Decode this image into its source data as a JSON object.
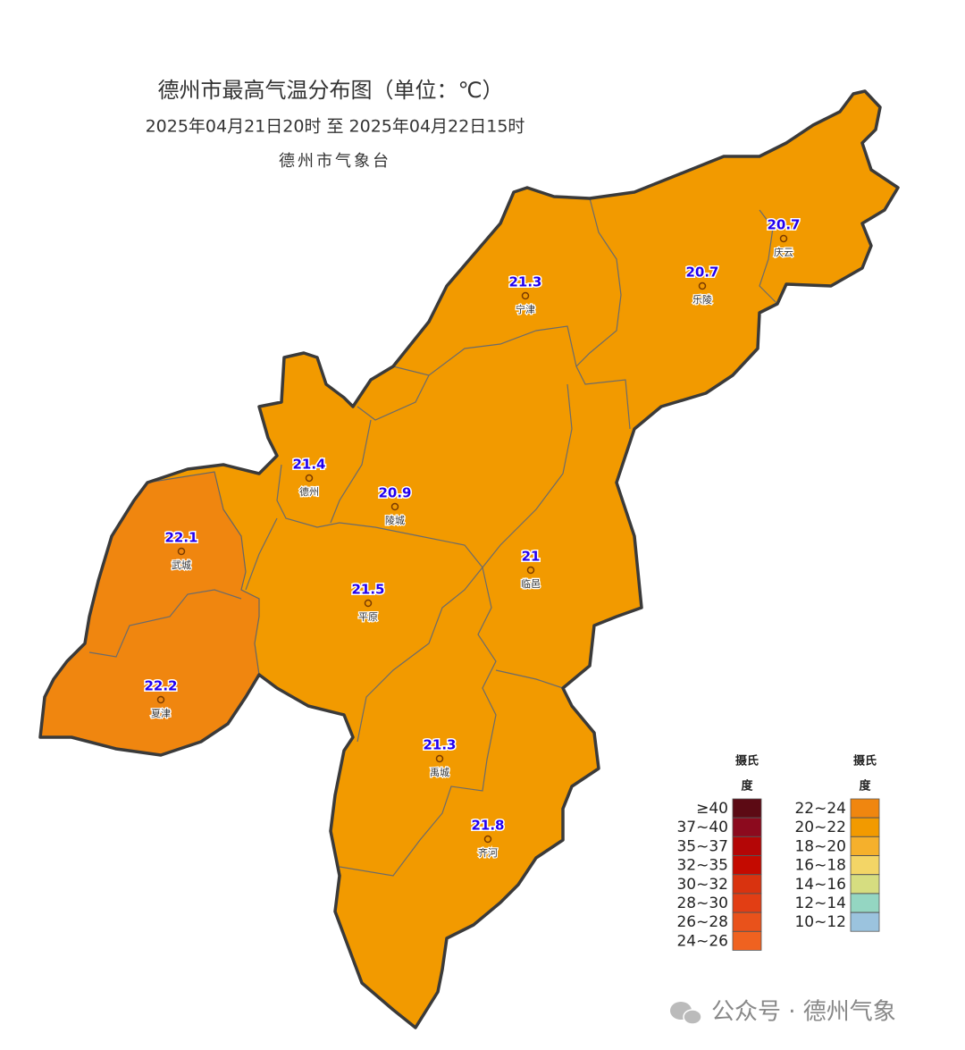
{
  "header": {
    "title": "德州市最高气温分布图（单位：℃）",
    "subtitle": "2025年04月21日20时  至  2025年04月22日15时",
    "agency": "德州市气象台"
  },
  "stations": [
    {
      "name": "庆云",
      "value": 20.7
    },
    {
      "name": "乐陵",
      "value": 20.7
    },
    {
      "name": "宁津",
      "value": 21.3
    },
    {
      "name": "德州",
      "value": 21.4
    },
    {
      "name": "陵城",
      "value": 20.9
    },
    {
      "name": "武城",
      "value": 22.1
    },
    {
      "name": "临邑",
      "value": 21
    },
    {
      "name": "平原",
      "value": 21.5
    },
    {
      "name": "夏津",
      "value": 22.2
    },
    {
      "name": "禹城",
      "value": 21.3
    },
    {
      "name": "齐河",
      "value": 21.8
    }
  ],
  "legend": {
    "columns": [
      {
        "title_lines": [
          "摄氏",
          "度"
        ],
        "items": [
          {
            "label": "≥40",
            "color": "#5c0a14"
          },
          {
            "label": "37~40",
            "color": "#8c0a1e"
          },
          {
            "label": "35~37",
            "color": "#b40606"
          },
          {
            "label": "32~35",
            "color": "#c40a00"
          },
          {
            "label": "30~32",
            "color": "#d9330f"
          },
          {
            "label": "28~30",
            "color": "#e23e14"
          },
          {
            "label": "26~28",
            "color": "#e9521b"
          },
          {
            "label": "24~26",
            "color": "#ef6220"
          }
        ]
      },
      {
        "title_lines": [
          "摄氏",
          "度"
        ],
        "items": [
          {
            "label": "22~24",
            "color": "#f0860f"
          },
          {
            "label": "20~22",
            "color": "#f29a00"
          },
          {
            "label": "18~20",
            "color": "#f5b02c"
          },
          {
            "label": "16~18",
            "color": "#f3d566"
          },
          {
            "label": "14~16",
            "color": "#d6dd80"
          },
          {
            "label": "12~14",
            "color": "#94d6c2"
          },
          {
            "label": "10~12",
            "color": "#9bc3de"
          }
        ]
      }
    ]
  },
  "watermark": "公众号 · 德州气象"
}
